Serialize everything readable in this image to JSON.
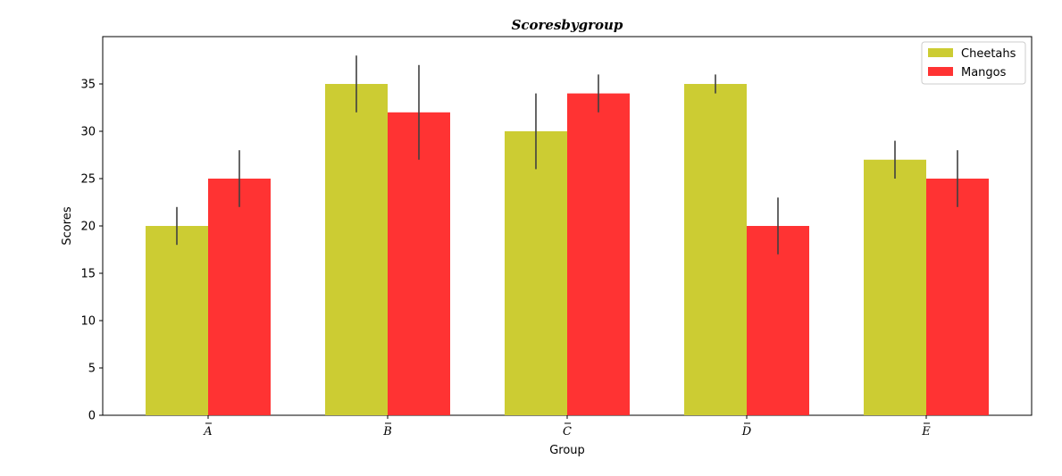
{
  "chart_data": {
    "type": "bar",
    "title": "Scoresbygroup",
    "xlabel": "Group",
    "ylabel": "Scores",
    "categories": [
      "A",
      "B",
      "C",
      "D",
      "E"
    ],
    "series": [
      {
        "name": "Cheetahs",
        "values": [
          20,
          35,
          30,
          35,
          27
        ],
        "errors": [
          2,
          3,
          4,
          1,
          2
        ],
        "color": "#cccc33"
      },
      {
        "name": "Mangos",
        "values": [
          25,
          32,
          34,
          20,
          25
        ],
        "errors": [
          3,
          5,
          2,
          3,
          3
        ],
        "color": "#ff3333"
      }
    ],
    "ylim": [
      0,
      40
    ],
    "yticks": [
      0,
      5,
      10,
      15,
      20,
      25,
      30,
      35
    ],
    "grid": false,
    "legend_position": "top-right",
    "error_bar_color": "#404040"
  }
}
